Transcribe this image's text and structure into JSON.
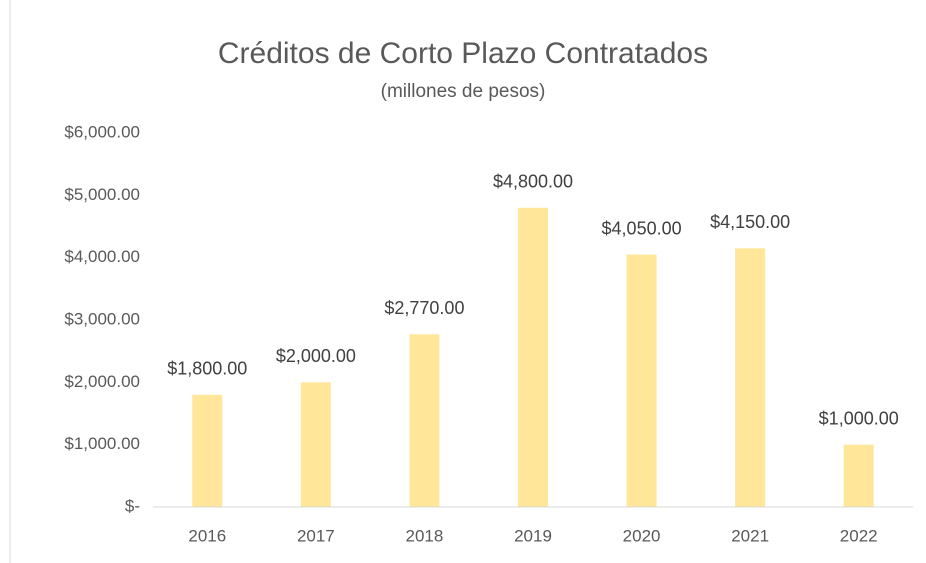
{
  "chart_data": {
    "type": "bar",
    "title": "Créditos de Corto Plazo Contratados",
    "subtitle": "(millones de pesos)",
    "categories": [
      "2016",
      "2017",
      "2018",
      "2019",
      "2020",
      "2021",
      "2022"
    ],
    "values": [
      1800,
      2000,
      2770,
      4800,
      4050,
      4150,
      1000
    ],
    "value_labels": [
      "$1,800.00",
      "$2,000.00",
      "$2,770.00",
      "$4,800.00",
      "$4,050.00",
      "$4,150.00",
      "$1,000.00"
    ],
    "color": "#ffe699",
    "ylim": [
      0,
      6000
    ],
    "yticks": [
      {
        "value": 0,
        "label": "$-"
      },
      {
        "value": 1000,
        "label": "$1,000.00"
      },
      {
        "value": 2000,
        "label": "$2,000.00"
      },
      {
        "value": 3000,
        "label": "$3,000.00"
      },
      {
        "value": 4000,
        "label": "$4,000.00"
      },
      {
        "value": 5000,
        "label": "$5,000.00"
      },
      {
        "value": 6000,
        "label": "$6,000.00"
      }
    ],
    "grid": false
  }
}
